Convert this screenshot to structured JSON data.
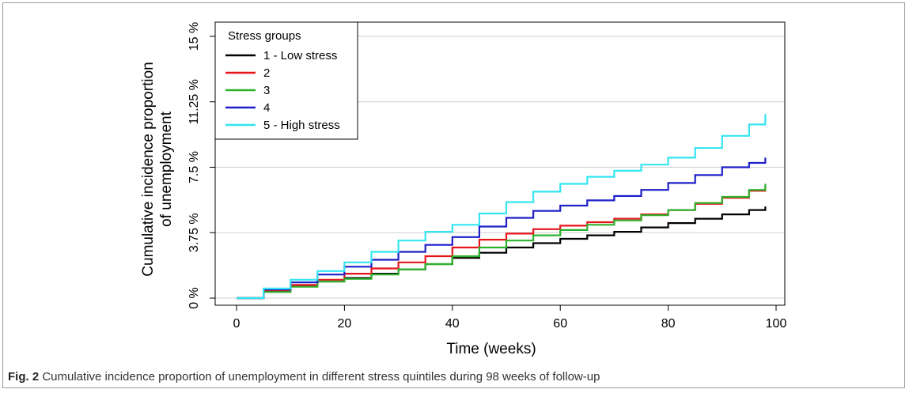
{
  "chart_data": {
    "type": "line",
    "title": "",
    "xlabel": "Time (weeks)",
    "ylabel_line1": "Cumulative incidence proportion",
    "ylabel_line2": "of unemployment",
    "xlim": [
      0,
      100
    ],
    "ylim": [
      0,
      15
    ],
    "xticks": [
      0,
      20,
      40,
      60,
      80,
      100
    ],
    "xtick_labels": [
      "0",
      "20",
      "40",
      "60",
      "80",
      "100"
    ],
    "yticks": [
      0,
      3.75,
      7.5,
      11.25,
      15
    ],
    "ytick_labels": [
      "0 %",
      "3.75 %",
      "7.5 %",
      "11.25 %",
      "15 %"
    ],
    "grid": "horizontal",
    "legend": {
      "title": "Stress groups",
      "placement": "top-left"
    },
    "series": [
      {
        "name": "1 - Low stress",
        "color": "#000000",
        "x": [
          0,
          5,
          10,
          15,
          20,
          25,
          30,
          35,
          40,
          45,
          50,
          55,
          60,
          65,
          70,
          75,
          80,
          85,
          90,
          95,
          98
        ],
        "y": [
          0,
          0.4,
          0.7,
          0.95,
          1.15,
          1.4,
          1.65,
          1.95,
          2.3,
          2.6,
          2.9,
          3.15,
          3.4,
          3.6,
          3.8,
          4.05,
          4.3,
          4.55,
          4.8,
          5.05,
          5.25
        ]
      },
      {
        "name": "2",
        "color": "#e8141b",
        "x": [
          0,
          5,
          10,
          15,
          20,
          25,
          30,
          35,
          40,
          45,
          50,
          55,
          60,
          65,
          70,
          75,
          80,
          85,
          90,
          95,
          98
        ],
        "y": [
          0,
          0.45,
          0.75,
          1.05,
          1.4,
          1.7,
          2.05,
          2.4,
          2.9,
          3.35,
          3.7,
          3.95,
          4.15,
          4.35,
          4.55,
          4.8,
          5.05,
          5.4,
          5.75,
          6.15,
          6.45
        ]
      },
      {
        "name": "3",
        "color": "#2db22d",
        "x": [
          0,
          5,
          10,
          15,
          20,
          25,
          30,
          35,
          40,
          45,
          50,
          55,
          60,
          65,
          70,
          75,
          80,
          85,
          90,
          95,
          98
        ],
        "y": [
          0,
          0.35,
          0.65,
          0.95,
          1.1,
          1.35,
          1.65,
          1.95,
          2.4,
          2.9,
          3.3,
          3.6,
          3.9,
          4.2,
          4.45,
          4.75,
          5.05,
          5.45,
          5.8,
          6.2,
          6.55
        ]
      },
      {
        "name": "4",
        "color": "#1f1fc8",
        "x": [
          0,
          5,
          10,
          15,
          20,
          25,
          30,
          35,
          40,
          45,
          50,
          55,
          60,
          65,
          70,
          75,
          80,
          85,
          90,
          95,
          98
        ],
        "y": [
          0,
          0.5,
          0.9,
          1.35,
          1.8,
          2.2,
          2.65,
          3.05,
          3.5,
          4.1,
          4.6,
          5.0,
          5.3,
          5.6,
          5.85,
          6.2,
          6.6,
          7.05,
          7.5,
          7.75,
          8.05
        ]
      },
      {
        "name": "5 - High stress",
        "color": "#33e5f2",
        "x": [
          0,
          5,
          10,
          15,
          20,
          25,
          30,
          35,
          40,
          45,
          50,
          55,
          60,
          65,
          70,
          75,
          80,
          85,
          90,
          95,
          98
        ],
        "y": [
          0,
          0.55,
          1.05,
          1.55,
          2.05,
          2.65,
          3.3,
          3.8,
          4.2,
          4.85,
          5.5,
          6.1,
          6.55,
          6.95,
          7.3,
          7.65,
          8.05,
          8.6,
          9.3,
          9.95,
          10.55
        ]
      }
    ]
  },
  "caption": {
    "label": "Fig. 2",
    "text": " Cumulative incidence proportion of unemployment in different stress quintiles during 98 weeks of follow-up"
  }
}
